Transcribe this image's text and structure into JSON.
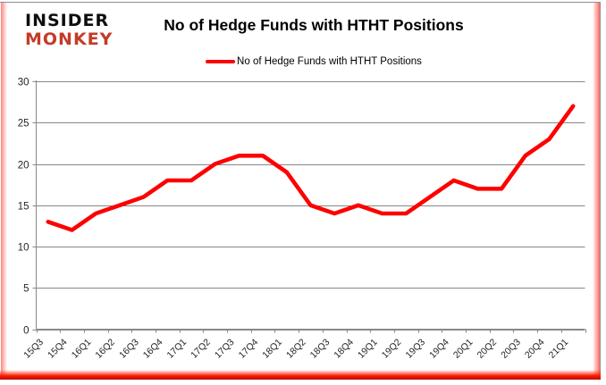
{
  "logo": {
    "line1": "INSIDER",
    "line2": "MONKEY"
  },
  "header": {
    "title": "No of Hedge Funds with HTHT Positions"
  },
  "legend": {
    "label": "No of Hedge Funds with HTHT Positions"
  },
  "colors": {
    "line": "#fe0000",
    "grid": "#878787",
    "axis": "#878787",
    "axis_text": "#262626",
    "logo_black": "#0e0e0e",
    "logo_red": "#c43b28"
  },
  "chart_data": {
    "type": "line",
    "title": "No of Hedge Funds with HTHT Positions",
    "categories": [
      "15Q3",
      "15Q4",
      "16Q1",
      "16Q2",
      "16Q3",
      "16Q4",
      "17Q1",
      "17Q2",
      "17Q3",
      "17Q4",
      "18Q1",
      "18Q2",
      "18Q3",
      "18Q4",
      "19Q1",
      "19Q2",
      "19Q3",
      "19Q4",
      "20Q1",
      "20Q2",
      "20Q3",
      "20Q4",
      "21Q1"
    ],
    "series": [
      {
        "name": "No of Hedge Funds with HTHT Positions",
        "color": "#fe0000",
        "values": [
          13,
          12,
          14,
          15,
          16,
          18,
          18,
          20,
          21,
          21,
          19,
          15,
          14,
          15,
          14,
          14,
          16,
          18,
          17,
          17,
          21,
          23,
          27
        ]
      }
    ],
    "xlabel": "",
    "ylabel": "",
    "ylim": [
      0,
      30
    ],
    "yticks": [
      0,
      5,
      10,
      15,
      20,
      25,
      30
    ],
    "grid": true,
    "legend_position": "top-center",
    "x_tick_rotation": -45
  }
}
